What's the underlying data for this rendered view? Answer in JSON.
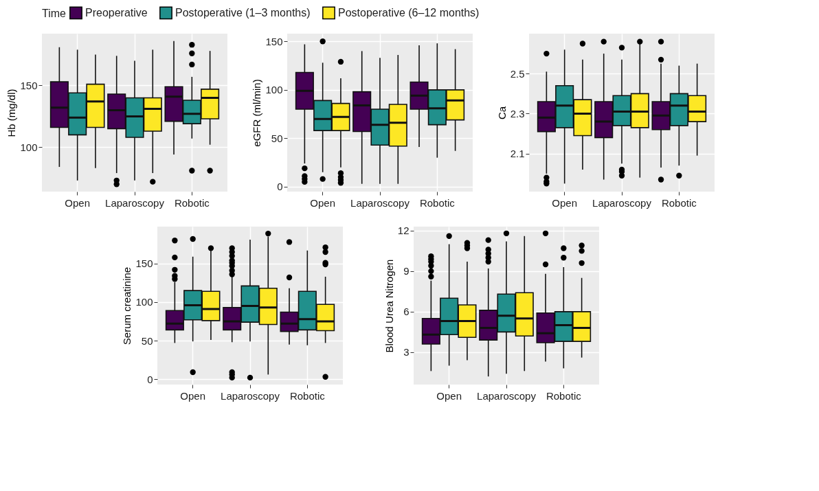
{
  "chart_data": [
    {
      "type": "box",
      "ylabel": "Hb (mg/dl)",
      "legend_title": "Time",
      "legend": "top",
      "grid": true,
      "categories": [
        "Open",
        "Laparoscopy",
        "Robotic"
      ],
      "ylim": [
        64,
        192
      ],
      "yticks": [
        100,
        150
      ],
      "series": [
        {
          "name": "Preoperative",
          "color": "#440154",
          "boxes": [
            {
              "low": 84,
              "q1": 116,
              "median": 132,
              "q3": 153,
              "high": 181
            },
            {
              "low": 79,
              "q1": 115,
              "median": 130,
              "q3": 143,
              "high": 174,
              "outliers": [
                73,
                70
              ]
            },
            {
              "low": 94,
              "q1": 121,
              "median": 141,
              "q3": 149,
              "high": 186
            }
          ]
        },
        {
          "name": "Postoperative (1–3 months)",
          "color": "#21908c",
          "boxes": [
            {
              "low": 73,
              "q1": 110,
              "median": 124,
              "q3": 144,
              "high": 179
            },
            {
              "low": 73,
              "q1": 108,
              "median": 125,
              "q3": 140,
              "high": 170
            },
            {
              "low": 107,
              "q1": 119,
              "median": 127,
              "q3": 138,
              "high": 157,
              "outliers": [
                183,
                176,
                167,
                81
              ]
            }
          ]
        },
        {
          "name": "Postoperative (6–12 months)",
          "color": "#fde725",
          "boxes": [
            {
              "low": 83,
              "q1": 116,
              "median": 137,
              "q3": 151,
              "high": 175
            },
            {
              "low": 79,
              "q1": 113,
              "median": 131,
              "q3": 140,
              "high": 179,
              "outliers": [
                72
              ]
            },
            {
              "low": 102,
              "q1": 123,
              "median": 140,
              "q3": 147,
              "high": 178,
              "outliers": [
                81
              ]
            }
          ]
        }
      ]
    },
    {
      "type": "box",
      "ylabel": "eGFR (ml/min)",
      "grid": true,
      "categories": [
        "Open",
        "Laparoscopy",
        "Robotic"
      ],
      "ylim": [
        -5,
        158
      ],
      "yticks": [
        0,
        50,
        100,
        150
      ],
      "series": [
        {
          "name": "Preoperative",
          "color": "#440154",
          "boxes": [
            {
              "low": 24,
              "q1": 80,
              "median": 99,
              "q3": 118,
              "high": 147,
              "outliers": [
                19,
                11,
                8,
                5
              ]
            },
            {
              "low": 3,
              "q1": 57,
              "median": 84,
              "q3": 98,
              "high": 140
            },
            {
              "low": 41,
              "q1": 80,
              "median": 94,
              "q3": 108,
              "high": 146
            }
          ]
        },
        {
          "name": "Postoperative (1–3 months)",
          "color": "#21908c",
          "boxes": [
            {
              "low": 15,
              "q1": 58,
              "median": 70,
              "q3": 89,
              "high": 128,
              "outliers": [
                150,
                8
              ]
            },
            {
              "low": 3,
              "q1": 43,
              "median": 64,
              "q3": 80,
              "high": 133
            },
            {
              "low": 30,
              "q1": 64,
              "median": 81,
              "q3": 100,
              "high": 148
            }
          ]
        },
        {
          "name": "Postoperative (6–12 months)",
          "color": "#fde725",
          "boxes": [
            {
              "low": 20,
              "q1": 58,
              "median": 72,
              "q3": 86,
              "high": 112,
              "outliers": [
                129,
                14,
                10,
                7,
                4
              ]
            },
            {
              "low": 3,
              "q1": 42,
              "median": 66,
              "q3": 85,
              "high": 136
            },
            {
              "low": 37,
              "q1": 69,
              "median": 89,
              "q3": 100,
              "high": 142
            }
          ]
        }
      ]
    },
    {
      "type": "box",
      "ylabel": "Ca",
      "grid": true,
      "categories": [
        "Open",
        "Laparoscopy",
        "Robotic"
      ],
      "ylim": [
        1.91,
        2.7
      ],
      "yticks": [
        2.1,
        2.3,
        2.5
      ],
      "series": [
        {
          "name": "Preoperative",
          "color": "#440154",
          "boxes": [
            {
              "low": 2.0,
              "q1": 2.21,
              "median": 2.28,
              "q3": 2.36,
              "high": 2.51,
              "outliers": [
                2.6,
                1.98,
                1.96,
                1.95
              ]
            },
            {
              "low": 1.97,
              "q1": 2.18,
              "median": 2.26,
              "q3": 2.36,
              "high": 2.6,
              "outliers": [
                2.66
              ]
            },
            {
              "low": 2.03,
              "q1": 2.22,
              "median": 2.29,
              "q3": 2.36,
              "high": 2.55,
              "outliers": [
                2.66,
                2.57,
                1.97
              ]
            }
          ]
        },
        {
          "name": "Postoperative (1–3 months)",
          "color": "#21908c",
          "boxes": [
            {
              "low": 1.95,
              "q1": 2.23,
              "median": 2.34,
              "q3": 2.44,
              "high": 2.62
            },
            {
              "low": 2.05,
              "q1": 2.24,
              "median": 2.31,
              "q3": 2.39,
              "high": 2.57,
              "outliers": [
                2.63,
                2.02,
                2.01,
                1.99
              ]
            },
            {
              "low": 2.04,
              "q1": 2.24,
              "median": 2.34,
              "q3": 2.4,
              "high": 2.54,
              "outliers": [
                1.99
              ]
            }
          ]
        },
        {
          "name": "Postoperative (6–12 months)",
          "color": "#fde725",
          "boxes": [
            {
              "low": 2.02,
              "q1": 2.19,
              "median": 2.3,
              "q3": 2.37,
              "high": 2.57,
              "outliers": [
                2.65
              ]
            },
            {
              "low": 1.98,
              "q1": 2.23,
              "median": 2.31,
              "q3": 2.4,
              "high": 2.65,
              "outliers": [
                2.66
              ]
            },
            {
              "low": 2.09,
              "q1": 2.26,
              "median": 2.31,
              "q3": 2.39,
              "high": 2.55
            }
          ]
        }
      ]
    },
    {
      "type": "box",
      "ylabel": "Serum creatinine",
      "grid": true,
      "categories": [
        "Open",
        "Laparoscopy",
        "Robotic"
      ],
      "ylim": [
        -7,
        198
      ],
      "yticks": [
        0,
        50,
        100,
        150
      ],
      "series": [
        {
          "name": "Preoperative",
          "color": "#440154",
          "boxes": [
            {
              "low": 47,
              "q1": 64,
              "median": 72,
              "q3": 89,
              "high": 126,
              "outliers": [
                180,
                158,
                142,
                134,
                130
              ]
            },
            {
              "low": 48,
              "q1": 64,
              "median": 75,
              "q3": 93,
              "high": 139,
              "outliers": [
                170,
                165,
                160,
                154,
                151,
                147,
                141,
                136,
                9,
                6,
                2
              ]
            },
            {
              "low": 45,
              "q1": 62,
              "median": 72,
              "q3": 87,
              "high": 118,
              "outliers": [
                178,
                132
              ]
            }
          ]
        },
        {
          "name": "Postoperative (1–3 months)",
          "color": "#21908c",
          "boxes": [
            {
              "low": 49,
              "q1": 77,
              "median": 96,
              "q3": 115,
              "high": 159,
              "outliers": [
                182,
                9
              ]
            },
            {
              "low": 49,
              "q1": 74,
              "median": 95,
              "q3": 121,
              "high": 181,
              "outliers": [
                2
              ]
            },
            {
              "low": 44,
              "q1": 64,
              "median": 78,
              "q3": 114,
              "high": 167
            }
          ]
        },
        {
          "name": "Postoperative (6–12 months)",
          "color": "#fde725",
          "boxes": [
            {
              "low": 51,
              "q1": 76,
              "median": 91,
              "q3": 114,
              "high": 167,
              "outliers": [
                170
              ]
            },
            {
              "low": 6,
              "q1": 71,
              "median": 93,
              "q3": 118,
              "high": 185,
              "outliers": [
                189
              ]
            },
            {
              "low": 47,
              "q1": 63,
              "median": 75,
              "q3": 97,
              "high": 133,
              "outliers": [
                171,
                165,
                151,
                149,
                3
              ]
            }
          ]
        }
      ]
    },
    {
      "type": "box",
      "ylabel": "Blood Urea Nitrogen",
      "grid": true,
      "categories": [
        "Open",
        "Laparoscopy",
        "Robotic"
      ],
      "ylim": [
        0.6,
        12.3
      ],
      "yticks": [
        3,
        6,
        9,
        12
      ],
      "series": [
        {
          "name": "Preoperative",
          "color": "#440154",
          "boxes": [
            {
              "low": 1.6,
              "q1": 3.6,
              "median": 4.3,
              "q3": 5.5,
              "high": 8.3,
              "outliers": [
                10.1,
                9.9,
                9.7,
                9.4,
                9.0,
                8.6
              ]
            },
            {
              "low": 1.2,
              "q1": 3.9,
              "median": 4.8,
              "q3": 6.1,
              "high": 9.2,
              "outliers": [
                11.3,
                10.6,
                10.3,
                10.0,
                9.7
              ]
            },
            {
              "low": 2.3,
              "q1": 3.7,
              "median": 4.4,
              "q3": 5.9,
              "high": 8.8,
              "outliers": [
                11.8,
                9.5
              ]
            }
          ]
        },
        {
          "name": "Postoperative (1–3 months)",
          "color": "#21908c",
          "boxes": [
            {
              "low": 2.0,
              "q1": 4.3,
              "median": 5.3,
              "q3": 7.0,
              "high": 11.0,
              "outliers": [
                11.6
              ]
            },
            {
              "low": 1.4,
              "q1": 4.5,
              "median": 5.7,
              "q3": 7.3,
              "high": 11.2,
              "outliers": [
                11.8
              ]
            },
            {
              "low": 1.8,
              "q1": 3.8,
              "median": 5.0,
              "q3": 6.0,
              "high": 9.3,
              "outliers": [
                10.7,
                10.0
              ]
            }
          ]
        },
        {
          "name": "Postoperative (6–12 months)",
          "color": "#fde725",
          "boxes": [
            {
              "low": 2.4,
              "q1": 4.1,
              "median": 5.3,
              "q3": 6.5,
              "high": 9.7,
              "outliers": [
                11.1,
                10.9,
                10.7
              ]
            },
            {
              "low": 1.6,
              "q1": 4.2,
              "median": 5.5,
              "q3": 7.4,
              "high": 11.6
            },
            {
              "low": 2.6,
              "q1": 3.8,
              "median": 4.8,
              "q3": 6.0,
              "high": 8.5,
              "outliers": [
                10.9,
                10.5,
                9.6
              ]
            }
          ]
        }
      ]
    }
  ]
}
